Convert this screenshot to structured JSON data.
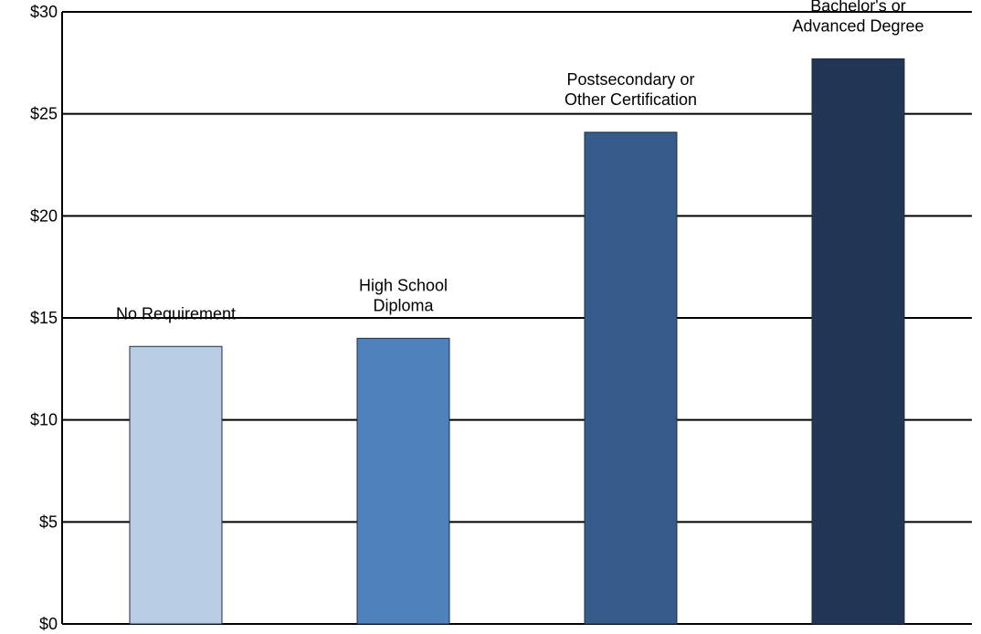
{
  "chart_data": {
    "type": "bar",
    "categories": [
      [
        "No Requirement"
      ],
      [
        "High School",
        "Diploma"
      ],
      [
        "Postsecondary or",
        "Other Certification"
      ],
      [
        "Bachelor's or",
        "Advanced Degree"
      ]
    ],
    "values": [
      13.6,
      14.0,
      24.1,
      27.7
    ],
    "y_tick_labels": [
      "$0",
      "$5",
      "$10",
      "$15",
      "$20",
      "$25",
      "$30"
    ],
    "y_ticks": [
      0,
      5,
      10,
      15,
      20,
      25,
      30
    ],
    "ylim": [
      0,
      30
    ],
    "grid": true,
    "colors": [
      "#b9cde5",
      "#4f81bd",
      "#355c8a",
      "#213654"
    ]
  }
}
